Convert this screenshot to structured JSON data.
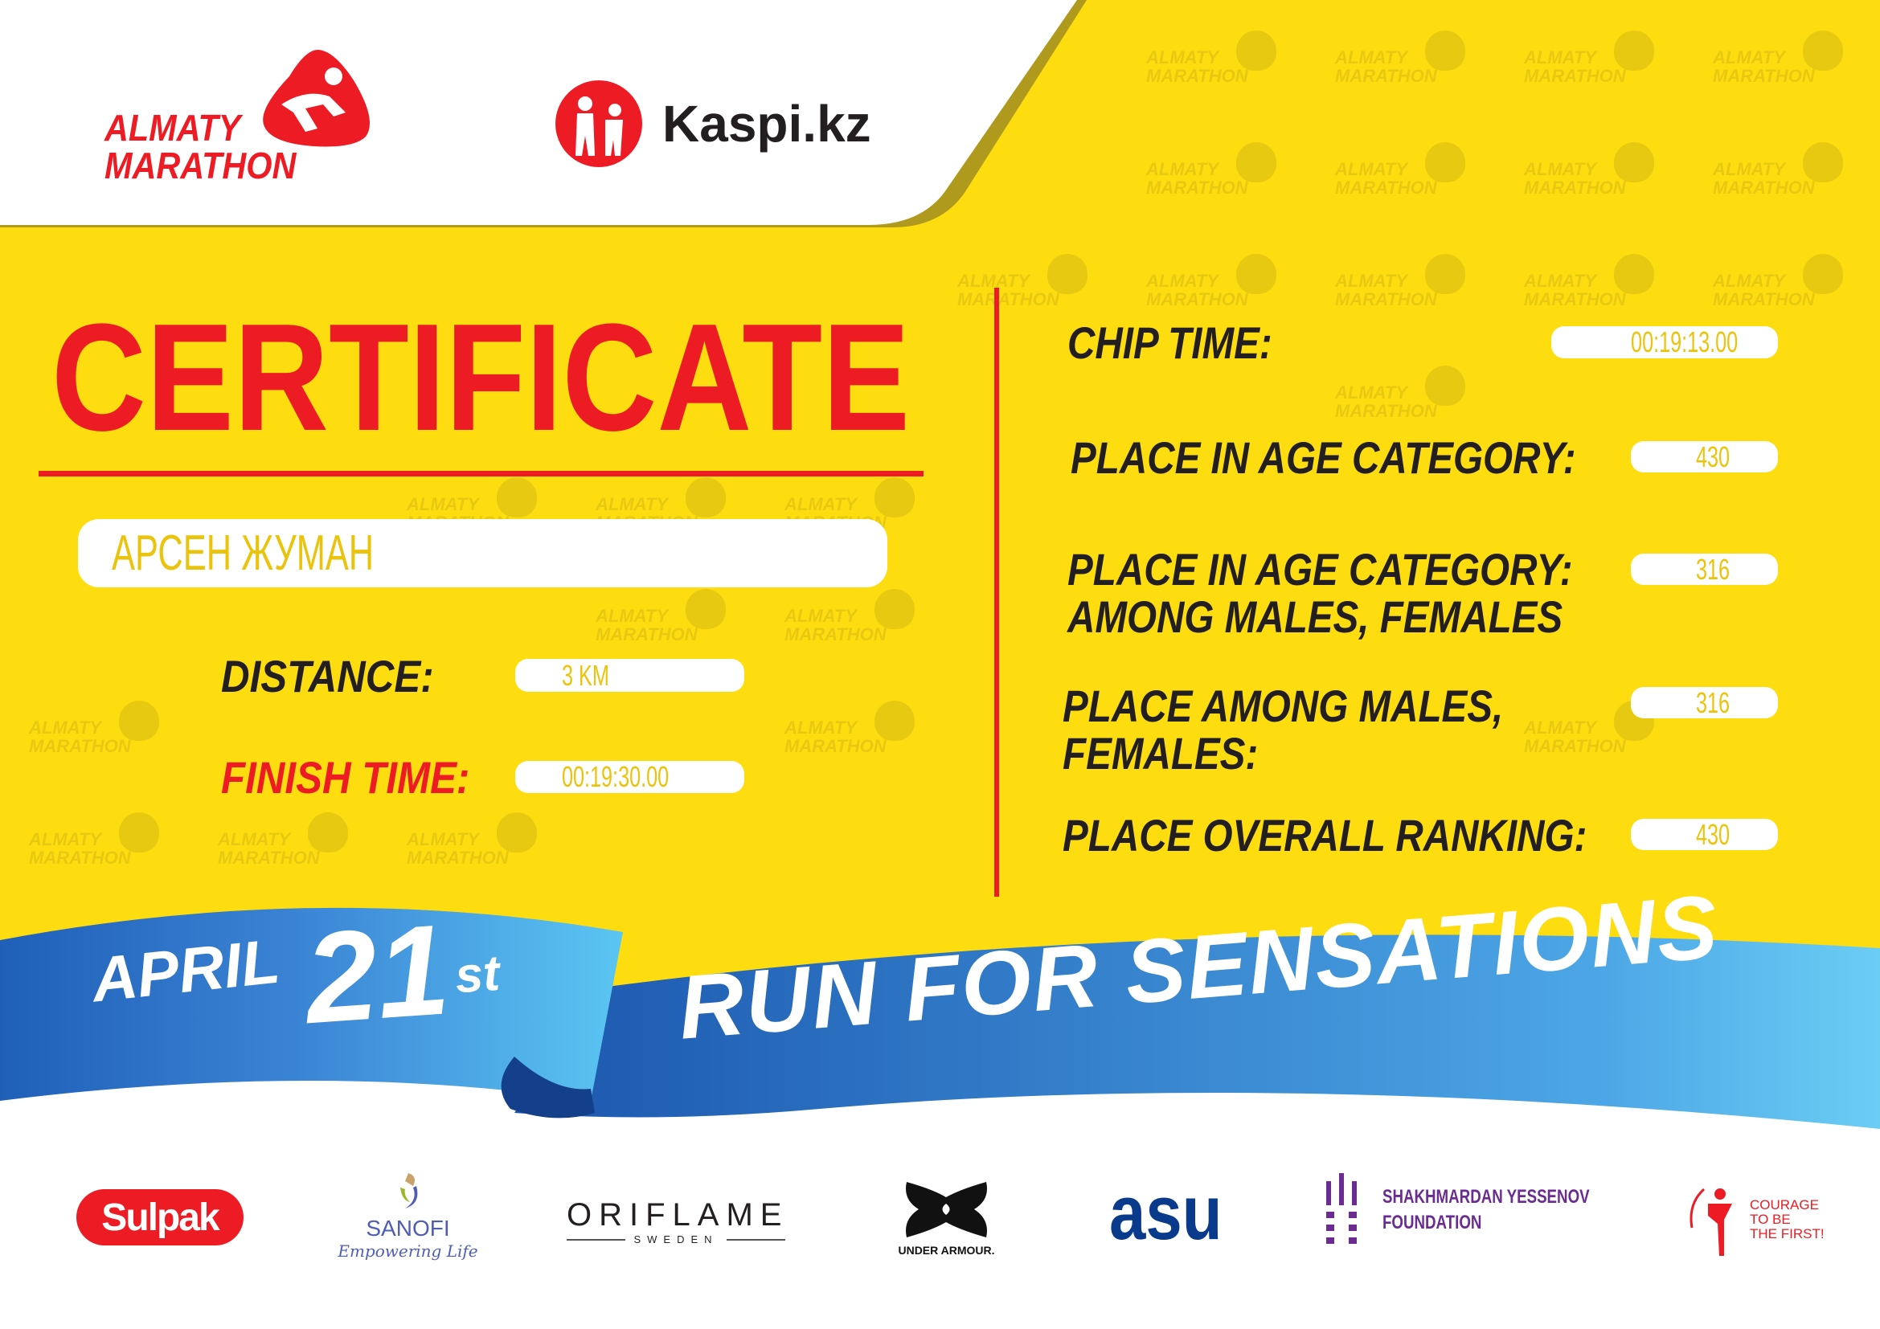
{
  "header": {
    "event_logo": {
      "line1": "ALMATY",
      "line2": "MARATHON"
    },
    "sponsor_logo": "Kaspi.kz"
  },
  "watermark": {
    "line1": "ALMATY",
    "line2": "MARATHON"
  },
  "certificate": {
    "title": "CERTIFICATE",
    "participant_name": "АРСЕН ЖУМАН",
    "distance_label": "DISTANCE:",
    "distance_value": "3 KM",
    "finish_time_label": "FINISH TIME:",
    "finish_time_value": "00:19:30.00"
  },
  "results": [
    {
      "label": [
        "CHIP TIME:"
      ],
      "value": "00:19:13.00"
    },
    {
      "label": [
        "PLACE IN AGE CATEGORY:"
      ],
      "value": "430"
    },
    {
      "label": [
        "PLACE IN AGE CATEGORY:",
        "AMONG MALES, FEMALES"
      ],
      "value": "316"
    },
    {
      "label": [
        "PLACE AMONG MALES,",
        "FEMALES:"
      ],
      "value": "316"
    },
    {
      "label": [
        "PLACE OVERALL RANKING:"
      ],
      "value": "430"
    }
  ],
  "banner": {
    "month": "APRIL",
    "day": "21",
    "suffix": "st",
    "slogan": "RUN FOR SENSATIONS"
  },
  "partners": {
    "sulpak": "Sulpak",
    "sanofi": "SANOFI",
    "sanofi_tagline": "Empowering Life",
    "oriflame": "ORIFLAME",
    "oriflame_sub": "SWEDEN",
    "under_armour": "UNDER ARMOUR.",
    "asu": "asu",
    "yessenov_1": "SHAKHMARDAN YESSENOV",
    "yessenov_2": "FOUNDATION",
    "courage_1": "COURAGE",
    "courage_2": "TO BE",
    "courage_3": "THE FIRST!"
  },
  "colors": {
    "yellow": "#FDDD0F",
    "red": "#ED1C24",
    "blue": "#2F7FD0",
    "light_blue": "#55C3F0",
    "dark": "#231F20"
  }
}
